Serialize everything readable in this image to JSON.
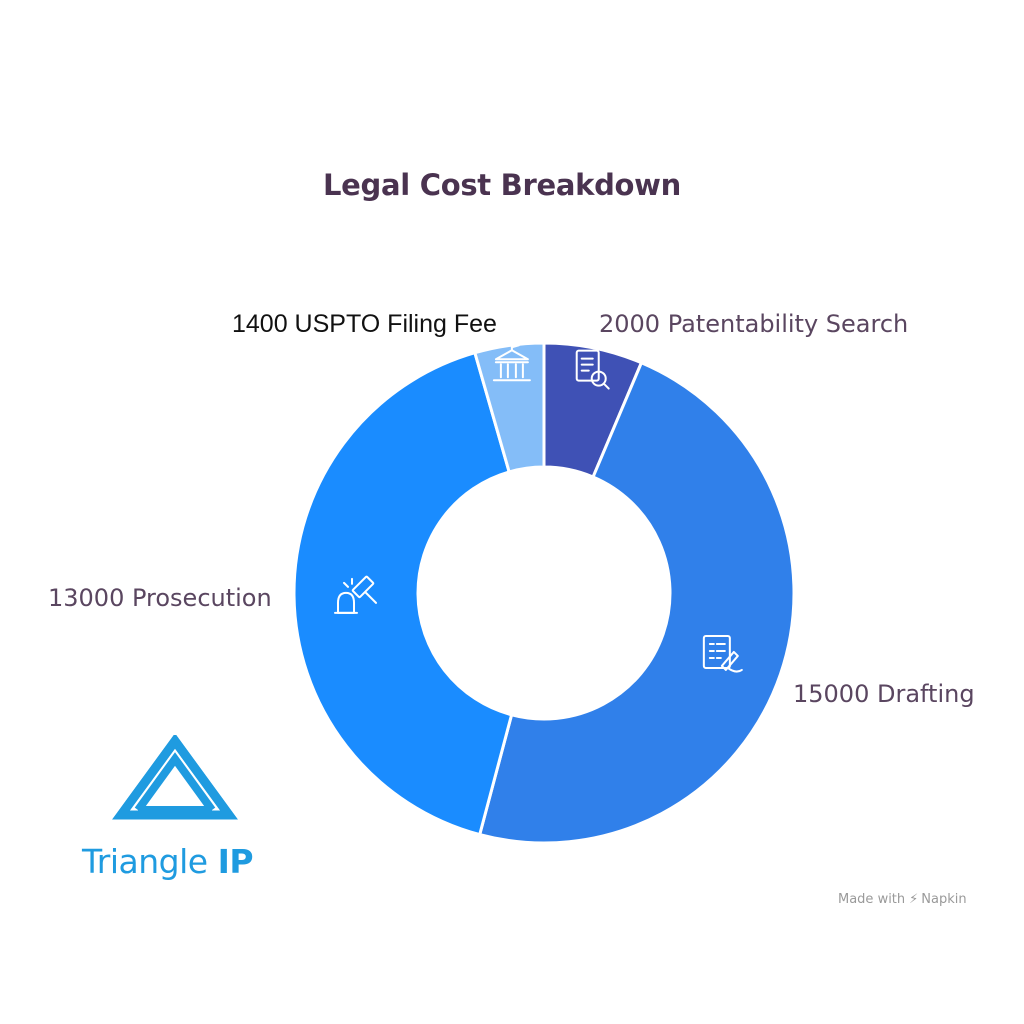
{
  "chart_data": {
    "type": "pie",
    "variant": "donut",
    "title": "Legal Cost Breakdown",
    "slices": [
      {
        "label": "Patentability Search",
        "value": 2000,
        "display": "2000 Patentability Search",
        "color": "#3f51b5",
        "icon": "document-search-icon"
      },
      {
        "label": "Drafting",
        "value": 15000,
        "display": "15000 Drafting",
        "color": "#3080ea",
        "icon": "document-sign-icon"
      },
      {
        "label": "Prosecution",
        "value": 13000,
        "display": "13000 Prosecution",
        "color": "#1a8cff",
        "icon": "gavel-icon"
      },
      {
        "label": "USPTO Filing Fee",
        "value": 1400,
        "display": "1400 USPTO Filing Fee",
        "color": "#84bdf8",
        "icon": "government-building-icon"
      }
    ],
    "start_angle_deg": 0,
    "direction": "clockwise"
  },
  "branding": {
    "logo_name": "Triangle",
    "logo_suffix": "IP",
    "logo_color": "#1f9be0",
    "watermark_prefix": "Made with",
    "watermark_brand": "Napkin"
  },
  "colors": {
    "title": "#4a3350",
    "label": "#5a4660",
    "background": "#ffffff"
  }
}
